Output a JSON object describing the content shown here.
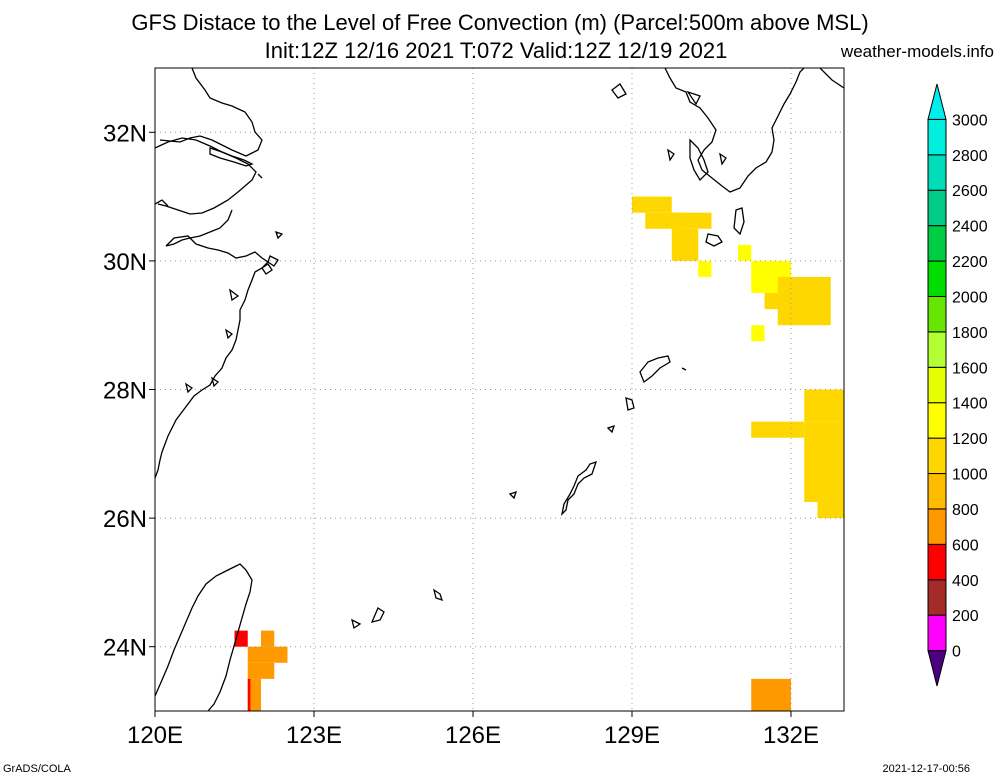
{
  "title_line1": "GFS Distace to the Level of Free Convection (m) (Parcel:500m above MSL)",
  "title_line2": "Init:12Z 12/16 2021 T:072 Valid:12Z 12/19 2021",
  "site": "weather-models.info",
  "footer_left": "GrADS/COLA",
  "footer_right": "2021-12-17-00:56",
  "map": {
    "lon_range": [
      120,
      133
    ],
    "lat_range": [
      23,
      33
    ],
    "lat_ticks": [
      {
        "value": 32,
        "label": "32N"
      },
      {
        "value": 30,
        "label": "30N"
      },
      {
        "value": 28,
        "label": "28N"
      },
      {
        "value": 26,
        "label": "26N"
      },
      {
        "value": 24,
        "label": "24N"
      }
    ],
    "lon_ticks": [
      {
        "value": 120,
        "label": "120E"
      },
      {
        "value": 123,
        "label": "123E"
      },
      {
        "value": 126,
        "label": "126E"
      },
      {
        "value": 129,
        "label": "129E"
      },
      {
        "value": 132,
        "label": "132E"
      }
    ],
    "grid_lons": [
      123,
      126,
      129,
      132
    ],
    "grid_lats": [
      32,
      30,
      28,
      26,
      24
    ],
    "cells": [
      {
        "lon": 129.0,
        "lat": 30.75,
        "w": 0.75,
        "h": 0.25,
        "value": 1000
      },
      {
        "lon": 129.25,
        "lat": 30.5,
        "w": 0.75,
        "h": 0.25,
        "value": 1000
      },
      {
        "lon": 129.75,
        "lat": 30.5,
        "w": 0.75,
        "h": 0.25,
        "value": 1000
      },
      {
        "lon": 129.75,
        "lat": 30.0,
        "w": 0.5,
        "h": 0.5,
        "value": 1000
      },
      {
        "lon": 130.25,
        "lat": 29.75,
        "w": 0.25,
        "h": 0.25,
        "value": 1200
      },
      {
        "lon": 131.0,
        "lat": 30.0,
        "w": 0.25,
        "h": 0.25,
        "value": 1200
      },
      {
        "lon": 131.25,
        "lat": 29.5,
        "w": 0.75,
        "h": 0.5,
        "value": 1200
      },
      {
        "lon": 131.5,
        "lat": 29.25,
        "w": 0.5,
        "h": 0.25,
        "value": 1000
      },
      {
        "lon": 131.75,
        "lat": 29.0,
        "w": 1.0,
        "h": 0.75,
        "value": 1000
      },
      {
        "lon": 131.25,
        "lat": 28.75,
        "w": 0.25,
        "h": 0.25,
        "value": 1200
      },
      {
        "lon": 132.25,
        "lat": 27.5,
        "w": 0.75,
        "h": 0.5,
        "value": 1000
      },
      {
        "lon": 131.25,
        "lat": 27.25,
        "w": 1.0,
        "h": 0.25,
        "value": 1000
      },
      {
        "lon": 132.25,
        "lat": 26.25,
        "w": 0.75,
        "h": 1.25,
        "value": 1000
      },
      {
        "lon": 132.5,
        "lat": 26.0,
        "w": 0.5,
        "h": 0.25,
        "value": 1000
      },
      {
        "lon": 131.25,
        "lat": 23.0,
        "w": 0.75,
        "h": 0.5,
        "value": 600
      },
      {
        "lon": 121.5,
        "lat": 24.0,
        "w": 0.25,
        "h": 0.25,
        "value": 400
      },
      {
        "lon": 121.75,
        "lat": 23.75,
        "w": 0.75,
        "h": 0.25,
        "value": 600
      },
      {
        "lon": 122.0,
        "lat": 24.0,
        "w": 0.25,
        "h": 0.25,
        "value": 600
      },
      {
        "lon": 121.75,
        "lat": 23.5,
        "w": 0.5,
        "h": 0.25,
        "value": 600
      },
      {
        "lon": 121.75,
        "lat": 23.0,
        "w": 0.25,
        "h": 0.5,
        "value": 600
      },
      {
        "lon": 121.75,
        "lat": 23.0,
        "w": 0.05,
        "h": 0.5,
        "value": 400
      }
    ]
  },
  "colorbar": {
    "levels": [
      0,
      200,
      400,
      600,
      800,
      1000,
      1200,
      1400,
      1600,
      1800,
      2000,
      2200,
      2400,
      2600,
      2800,
      3000
    ],
    "colors": [
      "#4b0082",
      "#ff00ff",
      "#a52a2a",
      "#ff0000",
      "#ff9900",
      "#ffbb00",
      "#ffd700",
      "#ffff00",
      "#e6ff00",
      "#b3ff33",
      "#66e600",
      "#00dd00",
      "#00cc44",
      "#00cc88",
      "#00ddbb",
      "#00eedd",
      "#00eeee"
    ]
  }
}
